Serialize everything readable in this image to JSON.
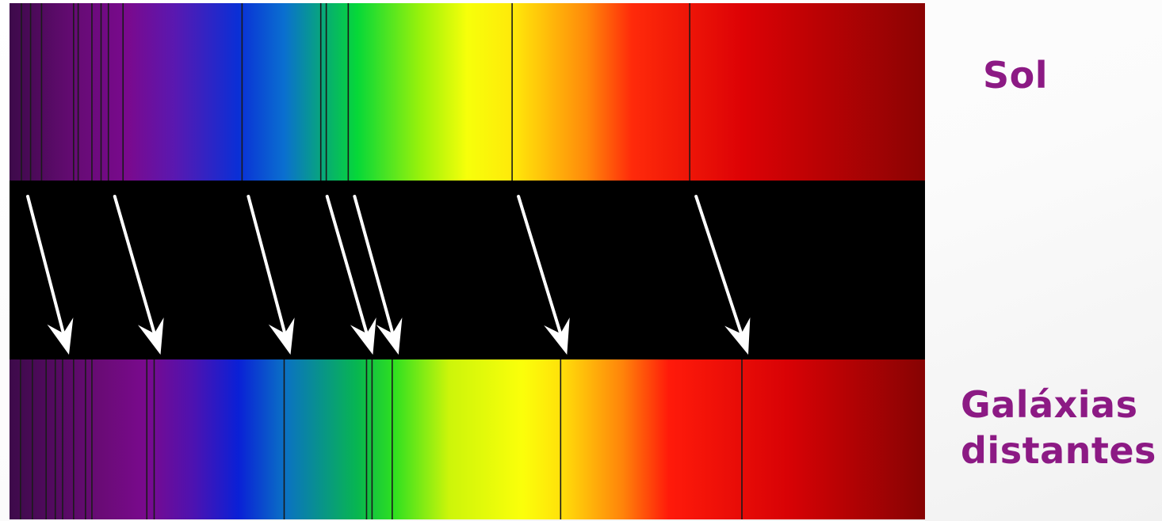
{
  "labels": {
    "sun": "Sol",
    "galaxies_line1": "Galáxias",
    "galaxies_line2": "distantes"
  },
  "colors": {
    "label": "#8c1a84",
    "band_background": "#000000",
    "arrow": "#ffffff",
    "absorption_line": "#1a1a1a"
  },
  "spectra": {
    "sun": {
      "gradient_stops": [
        {
          "offset": 0.0,
          "color": "#3d0a4a"
        },
        {
          "offset": 0.07,
          "color": "#650b73"
        },
        {
          "offset": 0.13,
          "color": "#7a0a8e"
        },
        {
          "offset": 0.18,
          "color": "#5a18b0"
        },
        {
          "offset": 0.25,
          "color": "#0a2fd6"
        },
        {
          "offset": 0.3,
          "color": "#0a6fd0"
        },
        {
          "offset": 0.35,
          "color": "#07b26a"
        },
        {
          "offset": 0.38,
          "color": "#06d838"
        },
        {
          "offset": 0.45,
          "color": "#9cf20a"
        },
        {
          "offset": 0.5,
          "color": "#f7ff0a"
        },
        {
          "offset": 0.55,
          "color": "#ffe90a"
        },
        {
          "offset": 0.63,
          "color": "#ff8a0a"
        },
        {
          "offset": 0.68,
          "color": "#ff2a0a"
        },
        {
          "offset": 0.8,
          "color": "#dd0205"
        },
        {
          "offset": 1.0,
          "color": "#8a0303"
        }
      ],
      "absorption_lines": [
        0.013,
        0.023,
        0.035,
        0.07,
        0.075,
        0.09,
        0.1,
        0.108,
        0.124,
        0.254,
        0.34,
        0.346,
        0.37,
        0.549,
        0.743
      ],
      "marked_lines": [
        0.013,
        0.108,
        0.254,
        0.34,
        0.37,
        0.549,
        0.743
      ]
    },
    "galaxies": {
      "gradient_stops": [
        {
          "offset": 0.0,
          "color": "#3d0a4a"
        },
        {
          "offset": 0.1,
          "color": "#6a0b76"
        },
        {
          "offset": 0.15,
          "color": "#7a0a8e"
        },
        {
          "offset": 0.2,
          "color": "#4e12b0"
        },
        {
          "offset": 0.25,
          "color": "#0a20d6"
        },
        {
          "offset": 0.3,
          "color": "#0a70c5"
        },
        {
          "offset": 0.38,
          "color": "#07b650"
        },
        {
          "offset": 0.42,
          "color": "#2ee020"
        },
        {
          "offset": 0.48,
          "color": "#ccf50a"
        },
        {
          "offset": 0.56,
          "color": "#fbff0a"
        },
        {
          "offset": 0.6,
          "color": "#ffe30a"
        },
        {
          "offset": 0.67,
          "color": "#ff830a"
        },
        {
          "offset": 0.72,
          "color": "#ff1a0a"
        },
        {
          "offset": 0.85,
          "color": "#d80205"
        },
        {
          "offset": 1.0,
          "color": "#860303"
        }
      ],
      "absorption_lines": [
        0.012,
        0.025,
        0.04,
        0.05,
        0.058,
        0.07,
        0.083,
        0.09,
        0.15,
        0.158,
        0.3,
        0.39,
        0.396,
        0.418,
        0.602,
        0.8
      ],
      "marked_lines": [
        0.058,
        0.158,
        0.3,
        0.39,
        0.418,
        0.602,
        0.8
      ]
    }
  }
}
